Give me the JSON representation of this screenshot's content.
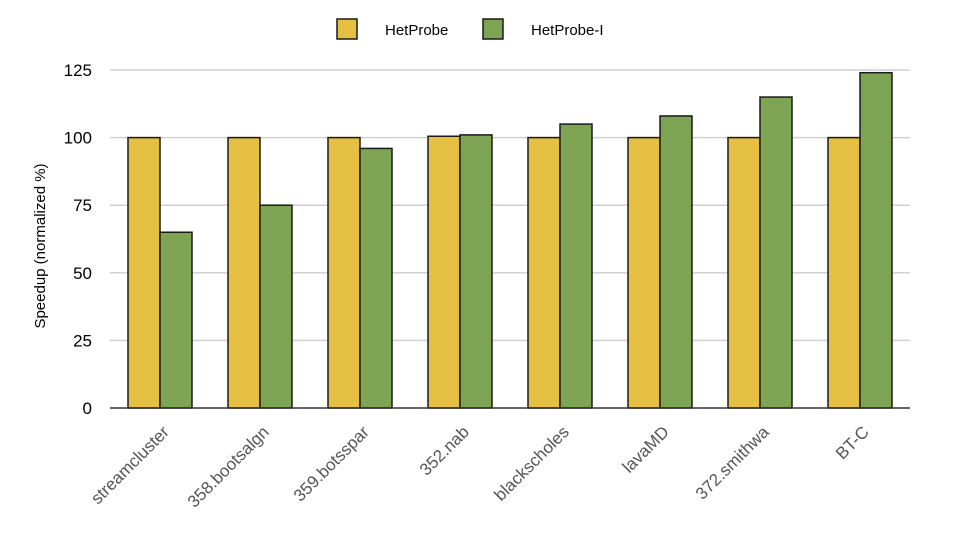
{
  "chart_data": {
    "type": "bar",
    "categories": [
      "streamcluster",
      "358.bootsalgn",
      "359.botsspar",
      "352.nab",
      "blackscholes",
      "lavaMD",
      "372.smithwa",
      "BT-C"
    ],
    "series": [
      {
        "name": "HetProbe",
        "color": "#e5c043",
        "values": [
          100,
          100,
          100,
          100.5,
          100,
          100,
          100,
          100
        ]
      },
      {
        "name": "HetProbe-I",
        "color": "#7da453",
        "values": [
          65,
          75,
          96,
          101,
          105,
          108,
          115,
          124
        ]
      }
    ],
    "title": "",
    "xlabel": "",
    "ylabel": "Speedup (normalized %)",
    "ylim": [
      0,
      125
    ],
    "yticks": [
      0,
      25,
      50,
      75,
      100,
      125
    ],
    "grid": true,
    "legend": "top-center"
  }
}
